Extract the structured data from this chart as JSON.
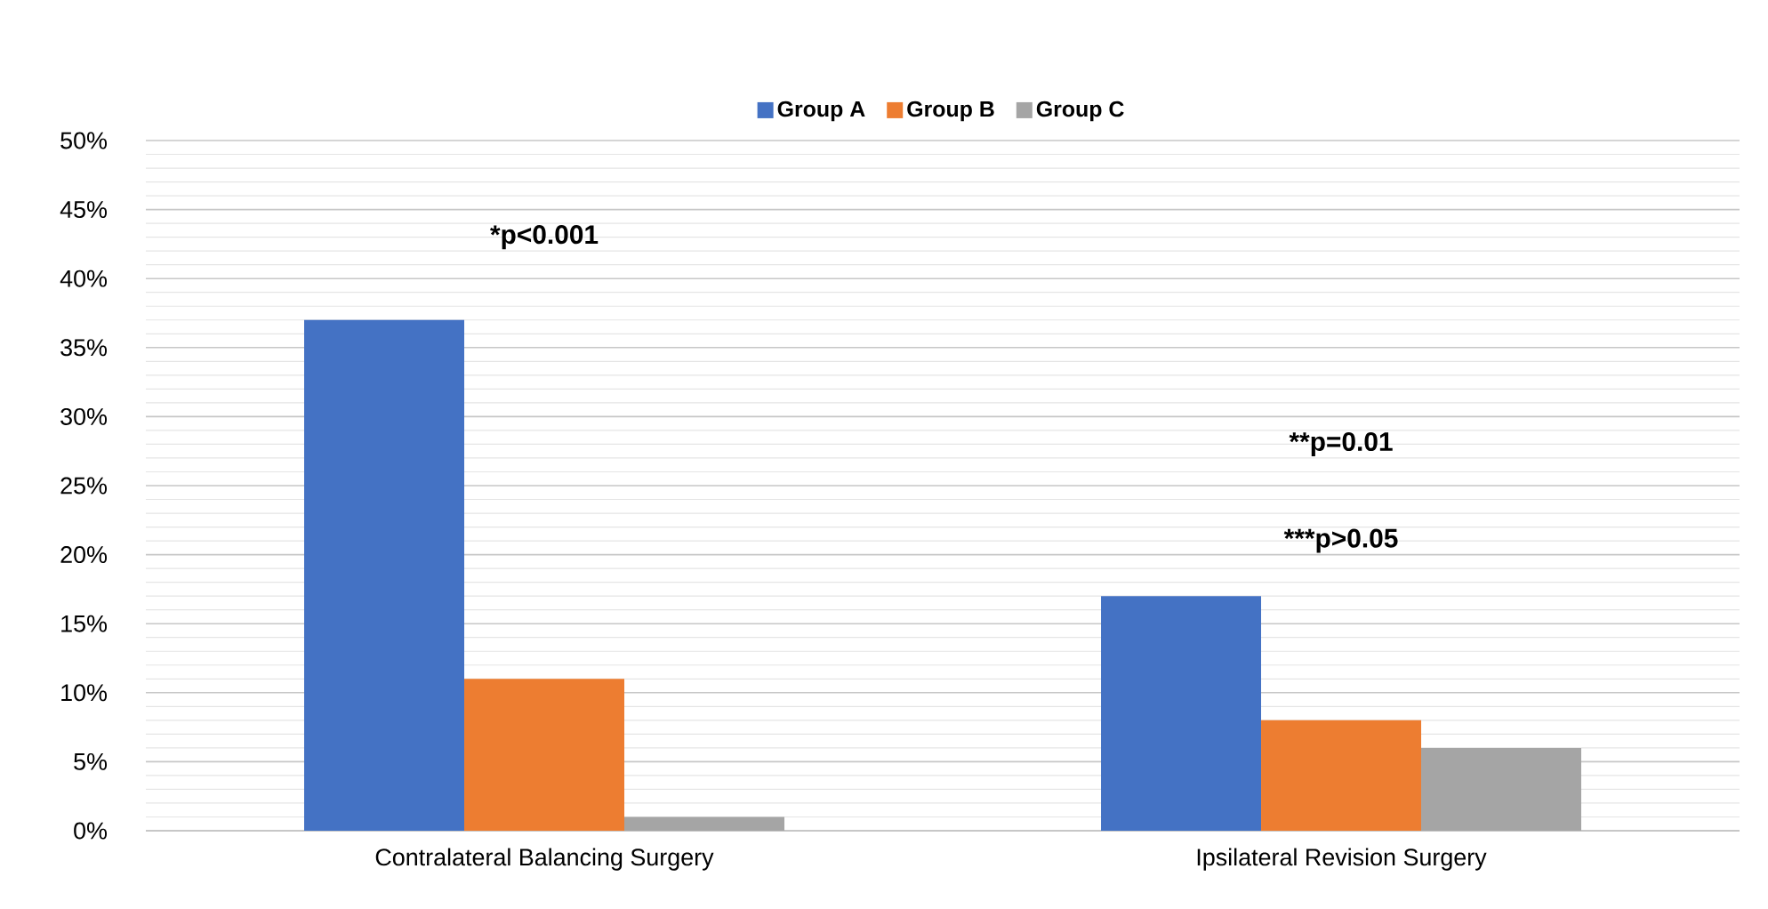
{
  "chart_data": {
    "type": "bar",
    "categories": [
      "Contralateral Balancing Surgery",
      "Ipsilateral Revision Surgery"
    ],
    "series": [
      {
        "name": "Group A",
        "color": "#4472c4",
        "values": [
          37,
          17
        ]
      },
      {
        "name": "Group B",
        "color": "#ed7d31",
        "values": [
          11,
          8
        ]
      },
      {
        "name": "Group C",
        "color": "#a5a5a5",
        "values": [
          1,
          6
        ]
      }
    ],
    "ylim": [
      0,
      50
    ],
    "yticks": [
      {
        "value": 0,
        "label": "0%"
      },
      {
        "value": 5,
        "label": "5%"
      },
      {
        "value": 10,
        "label": "10%"
      },
      {
        "value": 15,
        "label": "15%"
      },
      {
        "value": 20,
        "label": "20%"
      },
      {
        "value": 25,
        "label": "25%"
      },
      {
        "value": 30,
        "label": "30%"
      },
      {
        "value": 35,
        "label": "35%"
      },
      {
        "value": 40,
        "label": "40%"
      },
      {
        "value": 45,
        "label": "45%"
      },
      {
        "value": 50,
        "label": "50%"
      }
    ],
    "grid": "y",
    "legend": "top",
    "annotations": [
      "*p<0.001",
      "**p=0.01",
      "***p>0.05"
    ]
  }
}
